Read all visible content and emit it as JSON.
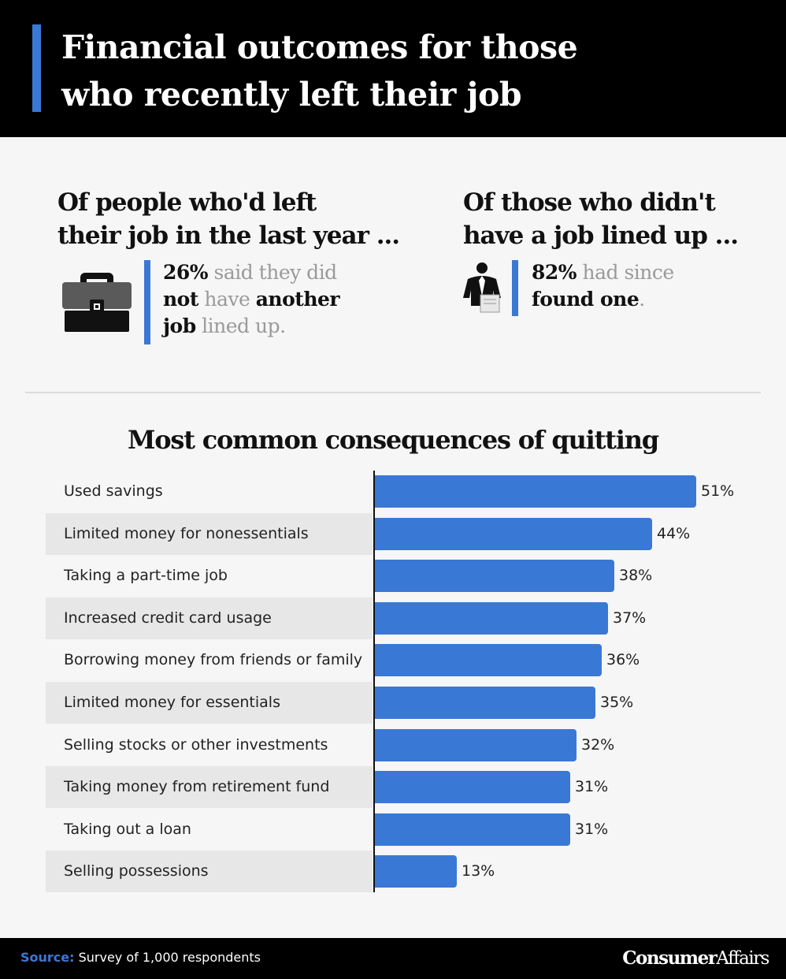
{
  "header": {
    "title_line1": "Financial outcomes for those",
    "title_line2": "who recently left their job"
  },
  "stat_left": {
    "heading_line1": "Of people who'd left",
    "heading_line2": "their job in the last year ...",
    "icon": "briefcase-icon",
    "pct": "26%",
    "t1": " said they did",
    "b1": "not",
    "t2": " have ",
    "b2": "another",
    "b3": "job",
    "t3": " lined up."
  },
  "stat_right": {
    "heading_line1": "Of those who didn't",
    "heading_line2": "have a job lined up ...",
    "icon": "job-seeker-icon",
    "pct": "82%",
    "t1": " had since",
    "b1": "found one",
    "t2": "."
  },
  "chart_data": {
    "type": "bar",
    "orientation": "horizontal",
    "title": "Most common consequences of quitting",
    "categories": [
      "Used savings",
      "Limited money for nonessentials",
      "Taking a part-time job",
      "Increased credit card usage",
      "Borrowing money from friends or family",
      "Limited money for essentials",
      "Selling stocks or other investments",
      "Taking money from retirement fund",
      "Taking out a loan",
      "Selling possessions"
    ],
    "values": [
      51,
      44,
      38,
      37,
      36,
      35,
      32,
      31,
      31,
      13
    ],
    "value_labels": [
      "51%",
      "44%",
      "38%",
      "37%",
      "36%",
      "35%",
      "32%",
      "31%",
      "31%",
      "13%"
    ],
    "unit": "%",
    "bar_color": "#3a78d6"
  },
  "footer": {
    "source_label": "Source:",
    "source_text": " Survey of 1,000 respondents",
    "brand_bold": "Consumer",
    "brand_regular": "Affairs"
  }
}
